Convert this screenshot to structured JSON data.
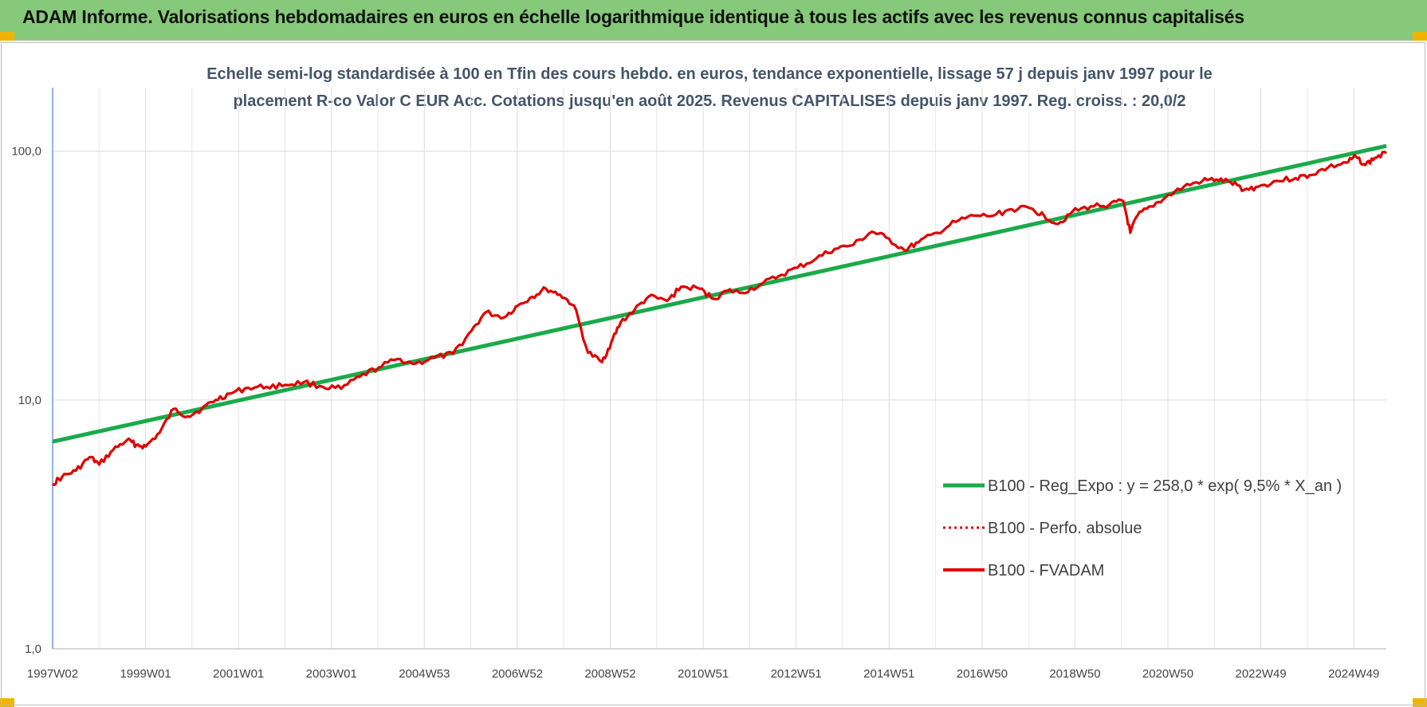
{
  "header": {
    "title": "ADAM Informe. Valorisations hebdomadaires en euros en échelle logarithmique identique à tous les actifs avec les revenus connus capitalisés"
  },
  "chart_data": {
    "type": "line",
    "title_lines": [
      "Echelle semi-log standardisée à 100 en Tfin des cours hebdo. en euros, tendance exponentielle, lissage 57 j depuis janv 1997 pour le",
      "placement R-co Valor C EUR Acc. Cotations jusqu'en août 2025. Revenus CAPITALISES depuis janv 1997. Reg. croiss. : 20,0/2"
    ],
    "y_scale": "log",
    "ylim": [
      1,
      180
    ],
    "y_ticks": [
      {
        "value": 1,
        "label": "1,0"
      },
      {
        "value": 10,
        "label": "10,0"
      },
      {
        "value": 100,
        "label": "100,0"
      }
    ],
    "x_ticks": [
      "1997W02",
      "1999W01",
      "2001W01",
      "2003W01",
      "2004W53",
      "2006W52",
      "2008W52",
      "2010W51",
      "2012W51",
      "2014W51",
      "2016W50",
      "2018W50",
      "2020W50",
      "2022W49",
      "2024W49"
    ],
    "x_range": [
      1997.0,
      2025.65
    ],
    "grid": "on",
    "legend_position": "bottom-right",
    "colors": {
      "trend": "#1aaa4a",
      "perf": "#e00000",
      "fvadam": "#e00000"
    },
    "series": [
      {
        "name": "B100 - Reg_Expo : y = 258,0 * exp( 9,5% *  X_an )",
        "style": "solid-thick",
        "x": [
          1997.0,
          2025.65
        ],
        "values": [
          6.8,
          105
        ]
      },
      {
        "name": "B100 - Perfo. absolue",
        "style": "dotted",
        "x": [],
        "values": []
      },
      {
        "name": "B100 - FVADAM",
        "style": "solid",
        "x": [
          1997.0,
          1997.2,
          1997.5,
          1997.8,
          1998.0,
          1998.3,
          1998.6,
          1998.8,
          1999.0,
          1999.3,
          1999.6,
          1999.9,
          2000.2,
          2000.5,
          2000.8,
          2001.2,
          2001.6,
          2002.0,
          2002.4,
          2002.8,
          2003.2,
          2003.6,
          2004.0,
          2004.4,
          2004.8,
          2005.2,
          2005.6,
          2006.0,
          2006.3,
          2006.7,
          2007.0,
          2007.3,
          2007.6,
          2007.9,
          2008.2,
          2008.5,
          2008.8,
          2009.0,
          2009.2,
          2009.5,
          2009.8,
          2010.2,
          2010.5,
          2010.9,
          2011.2,
          2011.5,
          2011.8,
          2012.2,
          2012.6,
          2013.0,
          2013.4,
          2013.8,
          2014.2,
          2014.6,
          2014.9,
          2015.3,
          2015.6,
          2016.0,
          2016.4,
          2016.8,
          2017.2,
          2017.6,
          2018.0,
          2018.3,
          2018.6,
          2018.9,
          2019.3,
          2019.7,
          2020.0,
          2020.15,
          2020.3,
          2020.6,
          2020.9,
          2021.3,
          2021.7,
          2022.0,
          2022.3,
          2022.6,
          2022.9,
          2023.3,
          2023.7,
          2024.0,
          2024.4,
          2024.8,
          2025.0,
          2025.2,
          2025.4,
          2025.65
        ],
        "values": [
          4.6,
          4.9,
          5.2,
          5.9,
          5.5,
          6.3,
          6.9,
          6.6,
          6.5,
          7.4,
          9.2,
          8.6,
          9.2,
          10.0,
          10.6,
          11.2,
          11.3,
          11.5,
          11.8,
          11.3,
          11.1,
          12.4,
          13.5,
          14.6,
          14.0,
          14.8,
          15.3,
          19.0,
          22.5,
          21.5,
          24.0,
          26.0,
          28.0,
          26.5,
          24.0,
          15.5,
          14.2,
          17.0,
          20.5,
          23.0,
          26.0,
          25.0,
          28.5,
          28.0,
          25.5,
          27.5,
          27.0,
          29.0,
          31.5,
          34.0,
          37.0,
          40.5,
          42.0,
          47.5,
          45.0,
          40.0,
          43.0,
          47.0,
          52.0,
          55.0,
          55.0,
          58.5,
          59.0,
          55.0,
          51.0,
          57.0,
          60.0,
          61.0,
          63.0,
          47.0,
          55.0,
          60.0,
          65.0,
          72.0,
          76.0,
          77.0,
          75.0,
          70.0,
          72.0,
          76.0,
          78.0,
          80.0,
          86.0,
          90.0,
          95.0,
          88.0,
          94.0,
          98.0
        ]
      }
    ]
  }
}
